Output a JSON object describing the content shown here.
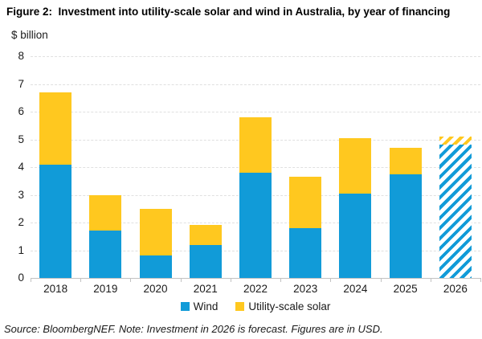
{
  "figure": {
    "title": "Figure 2:  Investment into utility-scale solar and wind in Australia, by year of financing",
    "source_note": "Source: BloombergNEF. Note: Investment in 2026 is forecast. Figures are in USD."
  },
  "chart_data": {
    "type": "bar",
    "stacked": true,
    "title": "Investment into utility-scale solar and wind in Australia, by year of financing",
    "ylabel": "$ billion",
    "xlabel": "",
    "ylim": [
      0,
      8
    ],
    "ytick_interval": 1,
    "yticks": [
      0,
      1,
      2,
      3,
      4,
      5,
      6,
      7,
      8
    ],
    "grid": true,
    "legend_position": "bottom",
    "categories": [
      "2018",
      "2019",
      "2020",
      "2021",
      "2022",
      "2023",
      "2024",
      "2025",
      "2026"
    ],
    "series": [
      {
        "name": "Wind",
        "color": "#119bd8",
        "values": [
          4.1,
          1.7,
          0.8,
          1.2,
          3.8,
          1.8,
          3.05,
          3.75,
          4.8
        ]
      },
      {
        "name": "Utility-scale solar",
        "color": "#ffc81f",
        "values": [
          2.6,
          1.3,
          1.7,
          0.7,
          2.0,
          1.85,
          2.0,
          0.95,
          0.3
        ]
      }
    ],
    "totals": [
      6.7,
      3.0,
      2.5,
      1.9,
      5.8,
      3.65,
      5.05,
      4.7,
      5.1
    ],
    "forecast_categories": [
      "2026"
    ],
    "forecast_style": "diagonal-hatch"
  }
}
